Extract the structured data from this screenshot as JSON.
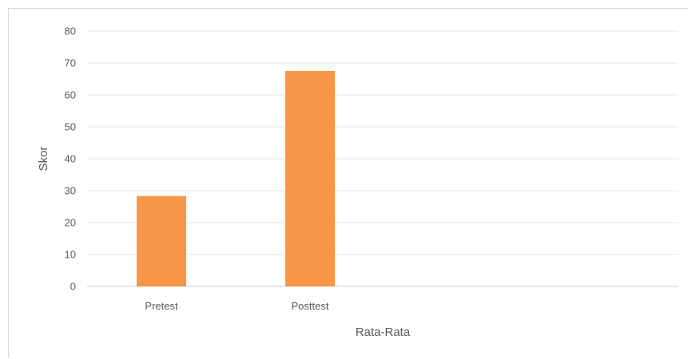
{
  "chart_data": {
    "type": "bar",
    "title": "",
    "xlabel": "Rata-Rata",
    "ylabel": "Skor",
    "categories": [
      "Pretest",
      "Posttest"
    ],
    "values": [
      28.3,
      67.5
    ],
    "ylim": [
      0,
      80
    ],
    "yticks": [
      0,
      10,
      20,
      30,
      40,
      50,
      60,
      70,
      80
    ],
    "grid": true,
    "legend": "none",
    "colors": {
      "bar": "#f79646",
      "grid": "#e4e4e4",
      "text": "#595959"
    }
  }
}
